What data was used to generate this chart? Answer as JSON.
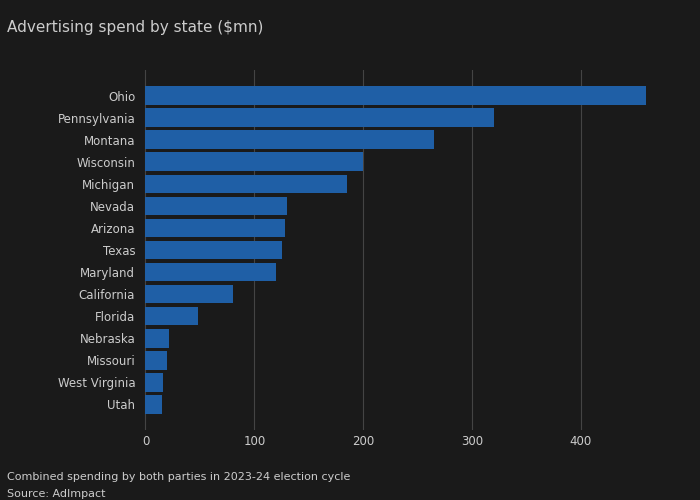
{
  "title": "Advertising spend by state ($mn)",
  "states": [
    "Ohio",
    "Pennsylvania",
    "Montana",
    "Wisconsin",
    "Michigan",
    "Nevada",
    "Arizona",
    "Texas",
    "Maryland",
    "California",
    "Florida",
    "Nebraska",
    "Missouri",
    "West Virginia",
    "Utah"
  ],
  "values": [
    460,
    320,
    265,
    200,
    185,
    130,
    128,
    125,
    120,
    80,
    48,
    22,
    20,
    16,
    15
  ],
  "bar_color": "#1f5fa6",
  "xlim": [
    -5,
    490
  ],
  "xticks": [
    0,
    100,
    200,
    300,
    400
  ],
  "footnote1": "Combined spending by both parties in 2023-24 election cycle",
  "footnote2": "Source: AdImpact",
  "background_color": "#1a1a1a",
  "text_color": "#cccccc",
  "grid_color": "#444444",
  "title_fontsize": 11,
  "label_fontsize": 8.5,
  "tick_fontsize": 8.5,
  "footnote_fontsize": 8
}
